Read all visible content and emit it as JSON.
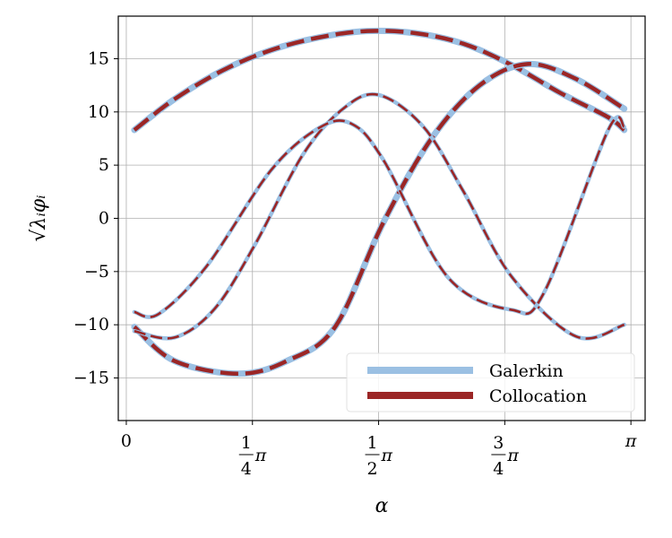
{
  "colors": {
    "galerkin": "#9bc0e3",
    "collocation": "#9b2626",
    "grid": "#b0b0b0",
    "axes": "#000000"
  },
  "chart_data": {
    "type": "line",
    "xlabel": "α",
    "ylabel": "√λᵢφᵢ",
    "xlim": [
      -0.05,
      3.23
    ],
    "ylim": [
      -19,
      19
    ],
    "grid": true,
    "legend_position": "lower-right",
    "x_ticks": [
      {
        "value": 0,
        "num": "0",
        "den": "",
        "suffix": ""
      },
      {
        "value": 0.7854,
        "num": "1",
        "den": "4",
        "suffix": "π"
      },
      {
        "value": 1.5708,
        "num": "1",
        "den": "2",
        "suffix": "π"
      },
      {
        "value": 2.3562,
        "num": "3",
        "den": "4",
        "suffix": "π"
      },
      {
        "value": 3.1416,
        "num": "π",
        "den": "",
        "suffix": ""
      }
    ],
    "y_ticks": [
      {
        "value": 15,
        "label": "15"
      },
      {
        "value": 10,
        "label": "10"
      },
      {
        "value": 5,
        "label": "5"
      },
      {
        "value": 0,
        "label": "0"
      },
      {
        "value": -5,
        "label": "−5"
      },
      {
        "value": -10,
        "label": "−10"
      },
      {
        "value": -15,
        "label": "−15"
      }
    ],
    "x_range": [
      0.05,
      3.1
    ],
    "series": [
      {
        "name": "Galerkin",
        "style": "solid"
      },
      {
        "name": "Collocation",
        "style": "dashed"
      }
    ],
    "modes": [
      {
        "x": [
          0.05,
          0.3,
          0.6,
          0.9,
          1.2,
          1.5,
          1.8,
          2.1,
          2.4,
          2.7,
          3.0,
          3.1
        ],
        "y": [
          8.3,
          11.2,
          13.9,
          15.8,
          17.0,
          17.6,
          17.4,
          16.4,
          14.4,
          11.8,
          9.5,
          8.3
        ],
        "weight": "thick"
      },
      {
        "x": [
          0.05,
          0.3,
          0.7,
          1.0,
          1.3,
          1.6,
          1.9,
          2.2,
          2.5,
          2.8,
          3.1
        ],
        "y": [
          -10.2,
          -13.4,
          -14.6,
          -13.4,
          -10.2,
          -0.4,
          7.5,
          12.5,
          14.5,
          13.1,
          10.3
        ],
        "weight": "thick"
      },
      {
        "x": [
          0.05,
          0.3,
          0.55,
          0.8,
          1.1,
          1.35,
          1.57,
          1.85,
          2.1,
          2.4,
          2.8,
          3.1
        ],
        "y": [
          -10.6,
          -11.2,
          -8.5,
          -2.5,
          6.0,
          10.3,
          11.6,
          8.6,
          2.5,
          -5.5,
          -11.1,
          -10.0
        ],
        "weight": "thin"
      },
      {
        "x": [
          0.05,
          0.2,
          0.5,
          0.9,
          1.2,
          1.4,
          1.6,
          2.0,
          2.4,
          2.6,
          3.0,
          3.1
        ],
        "y": [
          -8.8,
          -9.0,
          -4.5,
          4.5,
          8.5,
          8.9,
          5.5,
          -5.5,
          -8.6,
          -7.0,
          8.3,
          8.6
        ],
        "weight": "thin"
      }
    ]
  }
}
